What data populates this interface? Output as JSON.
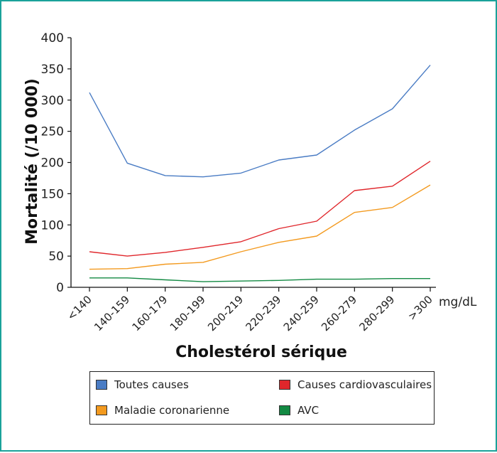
{
  "chart_data": {
    "type": "line",
    "categories": [
      "<140",
      "140-159",
      "160-179",
      "180-199",
      "200-219",
      "220-239",
      "240-259",
      "260-279",
      "280-299",
      ">300"
    ],
    "xlabel": "Cholestérol sérique",
    "x_unit": "mg/dL",
    "ylabel": "Mortalité (/10 000)",
    "ylim": [
      0,
      400
    ],
    "yticks": [
      0,
      50,
      100,
      150,
      200,
      250,
      300,
      350,
      400
    ],
    "grid": false,
    "legend_position": "bottom",
    "series": [
      {
        "name": "Toutes causes",
        "color": "#4a7cc4",
        "values": [
          312,
          199,
          179,
          177,
          183,
          204,
          212,
          252,
          286,
          356
        ]
      },
      {
        "name": "Causes cardiovasculaires",
        "color": "#e0262b",
        "values": [
          57,
          50,
          56,
          64,
          73,
          94,
          106,
          155,
          162,
          202
        ]
      },
      {
        "name": "Maladie coronarienne",
        "color": "#f39a1f",
        "values": [
          29,
          30,
          37,
          40,
          57,
          72,
          82,
          120,
          128,
          164
        ]
      },
      {
        "name": "AVC",
        "color": "#138a43",
        "values": [
          15,
          15,
          12,
          9,
          10,
          11,
          13,
          13,
          14,
          14
        ]
      }
    ]
  }
}
